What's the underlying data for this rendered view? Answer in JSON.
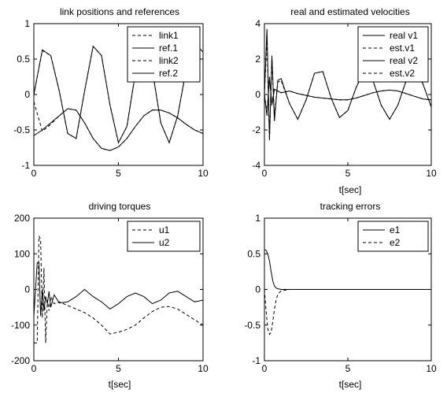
{
  "chart_data": [
    {
      "type": "line",
      "title": "link positions and references",
      "xlabel": "",
      "ylabel": "",
      "xlim": [
        0,
        10
      ],
      "ylim": [
        -1,
        1
      ],
      "xticks": [
        "0",
        "5",
        "10"
      ],
      "yticks": [
        "-1",
        "-0.5",
        "0",
        "0.5",
        "1"
      ],
      "grid": false,
      "legend": "top-right",
      "x": [
        0,
        0.5,
        1,
        1.5,
        2,
        2.5,
        3,
        3.5,
        4,
        4.5,
        5,
        5.5,
        6,
        6.5,
        7,
        7.5,
        8,
        8.5,
        9,
        9.5,
        10
      ],
      "series": [
        {
          "name": "link1",
          "style": "dashed",
          "values": [
            0,
            0.62,
            0.55,
            0.05,
            -0.55,
            -0.62,
            0.05,
            0.68,
            0.55,
            -0.15,
            -0.68,
            -0.45,
            0.3,
            0.7,
            0.35,
            -0.4,
            -0.68,
            -0.3,
            0.35,
            0.72,
            0.6
          ]
        },
        {
          "name": "ref.1",
          "style": "solid",
          "values": [
            0,
            0.63,
            0.55,
            0.05,
            -0.55,
            -0.62,
            0.05,
            0.68,
            0.55,
            -0.15,
            -0.68,
            -0.45,
            0.3,
            0.7,
            0.35,
            -0.4,
            -0.68,
            -0.3,
            0.35,
            0.72,
            0.6
          ]
        },
        {
          "name": "link2",
          "style": "dashed",
          "values": [
            -0.1,
            -0.52,
            -0.42,
            -0.3,
            -0.2,
            -0.22,
            -0.4,
            -0.62,
            -0.76,
            -0.79,
            -0.74,
            -0.62,
            -0.45,
            -0.3,
            -0.22,
            -0.22,
            -0.26,
            -0.33,
            -0.42,
            -0.5,
            -0.55
          ]
        },
        {
          "name": "ref.2",
          "style": "solid",
          "values": [
            -0.58,
            -0.5,
            -0.4,
            -0.3,
            -0.2,
            -0.22,
            -0.4,
            -0.62,
            -0.76,
            -0.79,
            -0.74,
            -0.62,
            -0.45,
            -0.3,
            -0.22,
            -0.22,
            -0.26,
            -0.33,
            -0.42,
            -0.5,
            -0.55
          ]
        }
      ]
    },
    {
      "type": "line",
      "title": "real and estimated velocities",
      "xlabel": "t[sec]",
      "ylabel": "",
      "xlim": [
        0,
        10
      ],
      "ylim": [
        -4,
        4
      ],
      "xticks": [
        "0",
        "5",
        "10"
      ],
      "yticks": [
        "-4",
        "-2",
        "0",
        "2",
        "4"
      ],
      "grid": false,
      "legend": "top-right",
      "x": [
        0,
        0.15,
        0.3,
        0.45,
        0.6,
        0.8,
        1,
        1.5,
        2,
        2.5,
        3,
        3.5,
        4,
        4.5,
        5,
        5.5,
        6,
        6.5,
        7,
        7.5,
        8,
        8.5,
        9,
        9.5,
        10
      ],
      "series": [
        {
          "name": "real v1",
          "style": "solid",
          "values": [
            0,
            3.7,
            -2.5,
            2.2,
            -1.5,
            0.8,
            0.9,
            -0.5,
            -1.4,
            -0.3,
            1.2,
            1.3,
            -0.2,
            -1.3,
            -0.9,
            0.4,
            1.4,
            0.8,
            -0.6,
            -1.4,
            -0.6,
            0.8,
            1.4,
            0.6,
            -0.7
          ]
        },
        {
          "name": "est.v1",
          "style": "dashed",
          "values": [
            0,
            3.2,
            -2.6,
            2.0,
            -1.2,
            0.7,
            0.8,
            -0.5,
            -1.4,
            -0.3,
            1.2,
            1.3,
            -0.2,
            -1.3,
            -0.9,
            0.4,
            1.4,
            0.8,
            -0.6,
            -1.4,
            -0.6,
            0.8,
            1.4,
            0.6,
            -0.7
          ]
        },
        {
          "name": "real v2",
          "style": "solid",
          "values": [
            0,
            -1.2,
            1.0,
            -0.6,
            0.3,
            0.2,
            0.1,
            0.2,
            0.05,
            -0.05,
            -0.15,
            -0.2,
            -0.25,
            -0.3,
            -0.3,
            -0.2,
            -0.05,
            0.1,
            0.2,
            0.25,
            0.2,
            0.05,
            -0.1,
            -0.25,
            -0.3
          ]
        },
        {
          "name": "est.v2",
          "style": "dashed",
          "values": [
            0,
            -1.0,
            0.8,
            -0.5,
            0.3,
            0.2,
            0.1,
            0.2,
            0.05,
            -0.05,
            -0.15,
            -0.2,
            -0.25,
            -0.3,
            -0.3,
            -0.2,
            -0.05,
            0.1,
            0.2,
            0.25,
            0.2,
            0.05,
            -0.1,
            -0.25,
            -0.3
          ]
        }
      ]
    },
    {
      "type": "line",
      "title": "driving torques",
      "xlabel": "t[sec]",
      "ylabel": "",
      "xlim": [
        0,
        10
      ],
      "ylim": [
        -200,
        200
      ],
      "xticks": [
        "0",
        "5",
        "10"
      ],
      "yticks": [
        "-200",
        "-100",
        "0",
        "100",
        "200"
      ],
      "grid": false,
      "legend": "top-right",
      "x": [
        0,
        0.2,
        0.3,
        0.4,
        0.5,
        0.6,
        0.7,
        0.8,
        0.9,
        1.0,
        1.2,
        1.5,
        2,
        2.5,
        3,
        3.5,
        4,
        4.5,
        5,
        5.5,
        6,
        6.5,
        7,
        7.5,
        8,
        8.5,
        9,
        9.5,
        10
      ],
      "series": [
        {
          "name": "u1",
          "style": "dashed",
          "values": [
            -150,
            -150,
            150,
            140,
            -80,
            60,
            -150,
            -30,
            -60,
            -20,
            -40,
            -35,
            -45,
            -55,
            -65,
            -80,
            -100,
            -125,
            -120,
            -112,
            -100,
            -80,
            -62,
            -50,
            -48,
            -55,
            -70,
            -85,
            -100
          ]
        },
        {
          "name": "u2",
          "style": "solid",
          "values": [
            -75,
            75,
            75,
            -75,
            0,
            -60,
            -20,
            -40,
            -5,
            -50,
            -15,
            -38,
            -35,
            -20,
            0,
            -20,
            -35,
            -55,
            -40,
            -20,
            -10,
            -20,
            -40,
            -30,
            -10,
            -5,
            -20,
            -35,
            -30
          ]
        }
      ]
    },
    {
      "type": "line",
      "title": "tracking errors",
      "xlabel": "t[sec]",
      "ylabel": "",
      "xlim": [
        0,
        10
      ],
      "ylim": [
        -1,
        1
      ],
      "xticks": [
        "0",
        "5",
        "10"
      ],
      "yticks": [
        "-1",
        "-0.5",
        "0",
        "0.5",
        "1"
      ],
      "grid": false,
      "legend": "top-right",
      "x": [
        0,
        0.1,
        0.2,
        0.3,
        0.4,
        0.5,
        0.6,
        0.7,
        0.8,
        1.0,
        1.5,
        2,
        3,
        4,
        5,
        6,
        7,
        8,
        9,
        10
      ],
      "series": [
        {
          "name": "e1",
          "style": "solid",
          "values": [
            0.56,
            0.55,
            0.5,
            0.4,
            0.25,
            0.12,
            0.05,
            0.02,
            0.01,
            0,
            0,
            0,
            0,
            0,
            0,
            0,
            0,
            0,
            0,
            0
          ]
        },
        {
          "name": "e2",
          "style": "dashed",
          "values": [
            0,
            -0.3,
            -0.55,
            -0.63,
            -0.6,
            -0.45,
            -0.28,
            -0.15,
            -0.07,
            -0.02,
            0,
            0,
            0,
            0,
            0,
            0,
            0,
            0,
            0,
            0
          ]
        }
      ]
    }
  ]
}
